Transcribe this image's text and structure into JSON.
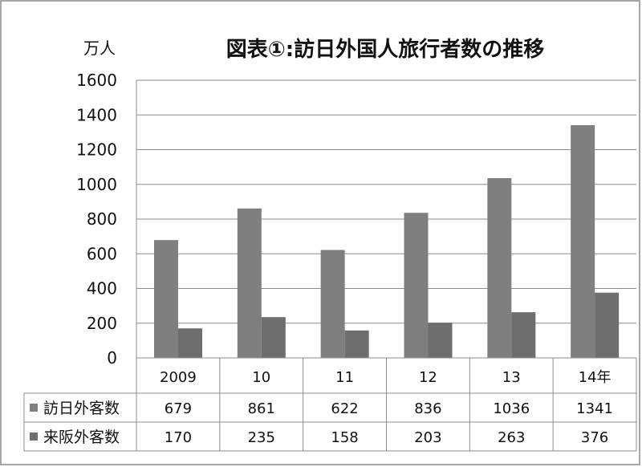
{
  "chart_data": {
    "type": "bar",
    "title": "図表①:訪日外国人旅行者数の推移",
    "ylabel": "万人",
    "categories": [
      "2009",
      "10",
      "11",
      "12",
      "13",
      "14年"
    ],
    "ylim": [
      0,
      1600
    ],
    "yticks": [
      0,
      200,
      400,
      600,
      800,
      1000,
      1200,
      1400,
      1600
    ],
    "grid": true,
    "series": [
      {
        "name": "訪日外客数",
        "values": [
          679,
          861,
          622,
          836,
          1036,
          1341
        ],
        "color": "#7f7f7f"
      },
      {
        "name": "来阪外客数",
        "values": [
          170,
          235,
          158,
          203,
          263,
          376
        ],
        "color": "#6e6e6e"
      }
    ],
    "data_table": true
  }
}
